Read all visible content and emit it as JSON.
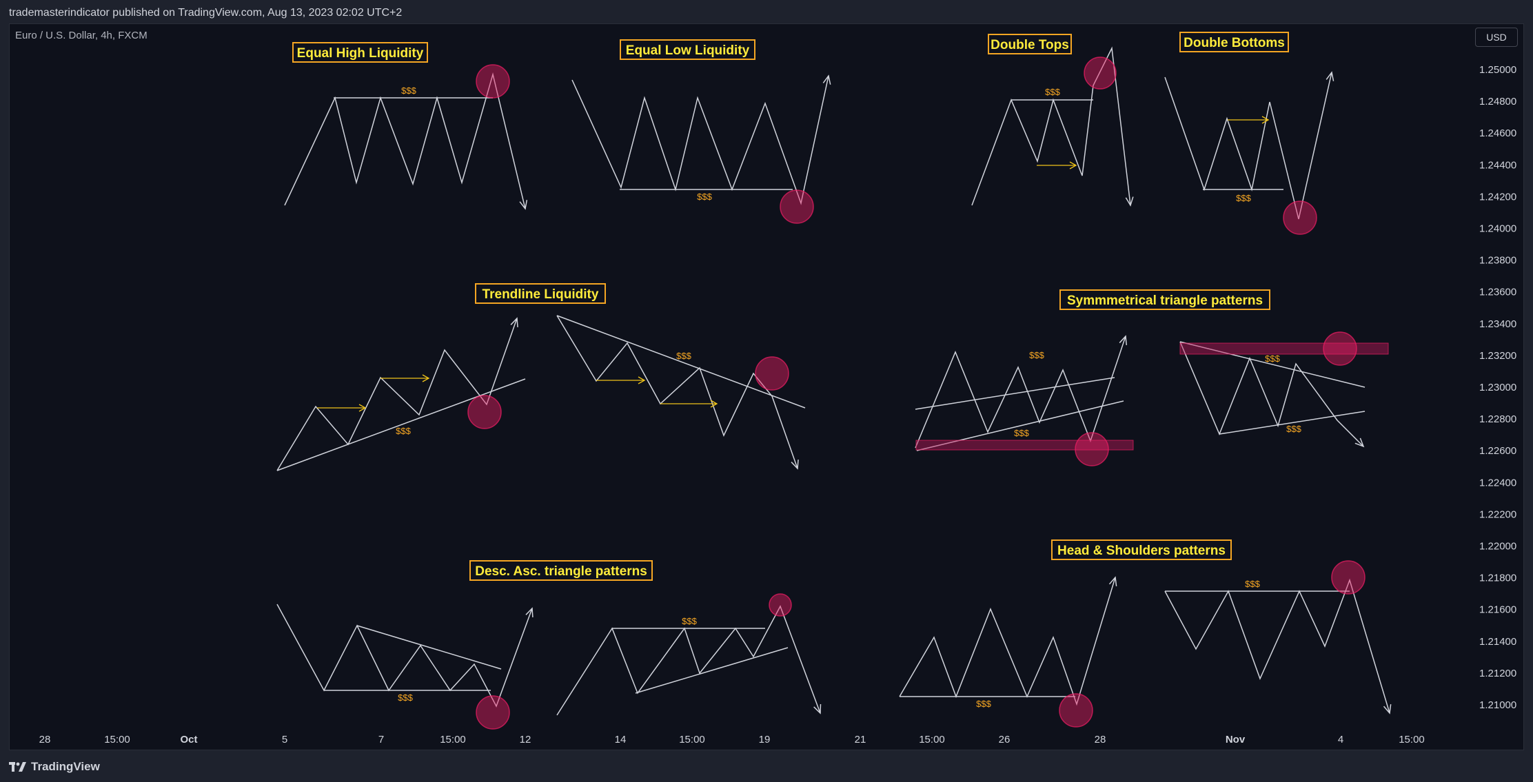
{
  "header": {
    "publish_line": "trademasterindicator published on TradingView.com, Aug 13, 2023 02:02 UTC+2"
  },
  "chart": {
    "symbol": "Euro / U.S. Dollar, 4h, FXCM",
    "currency": "USD"
  },
  "footer": {
    "brand": "TradingView"
  },
  "colors": {
    "background": "#0e111b",
    "pattern_line": "#d1d4dc",
    "arrow_yellow": "#f0c419",
    "label_text": "#ffeb3b",
    "label_border": "#f5a623",
    "liquidity_circle": "#e91e63",
    "liquidity_zone": "#c2185b"
  },
  "chart_data": {
    "type": "line",
    "y_axis": {
      "ticks": [
        "1.25000",
        "1.24800",
        "1.24600",
        "1.24400",
        "1.24200",
        "1.24000",
        "1.23800",
        "1.23600",
        "1.23400",
        "1.23200",
        "1.23000",
        "1.22800",
        "1.22600",
        "1.22400",
        "1.22200",
        "1.22000",
        "1.21800",
        "1.21600",
        "1.21400",
        "1.21200",
        "1.21000"
      ],
      "range": [
        1.209,
        1.251
      ]
    },
    "x_axis": {
      "ticks": [
        {
          "label": "28",
          "bold": false
        },
        {
          "label": "15:00",
          "bold": false
        },
        {
          "label": "Oct",
          "bold": true
        },
        {
          "label": "5",
          "bold": false
        },
        {
          "label": "7",
          "bold": false
        },
        {
          "label": "15:00",
          "bold": false
        },
        {
          "label": "12",
          "bold": false
        },
        {
          "label": "14",
          "bold": false
        },
        {
          "label": "15:00",
          "bold": false
        },
        {
          "label": "19",
          "bold": false
        },
        {
          "label": "21",
          "bold": false
        },
        {
          "label": "15:00",
          "bold": false
        },
        {
          "label": "26",
          "bold": false
        },
        {
          "label": "28",
          "bold": false
        },
        {
          "label": "Nov",
          "bold": true
        },
        {
          "label": "4",
          "bold": false
        },
        {
          "label": "15:00",
          "bold": false
        }
      ]
    },
    "annotations": [
      {
        "text": "Equal High Liquidity"
      },
      {
        "text": "Equal Low Liquidity"
      },
      {
        "text": "Double Tops"
      },
      {
        "text": "Double Bottoms"
      },
      {
        "text": "Trendline Liquidity"
      },
      {
        "text": "Symmmetrical triangle patterns"
      },
      {
        "text": "Desc. Asc. triangle patterns"
      },
      {
        "text": "Head & Shoulders patterns"
      }
    ],
    "liquidity_label": "$$$"
  }
}
